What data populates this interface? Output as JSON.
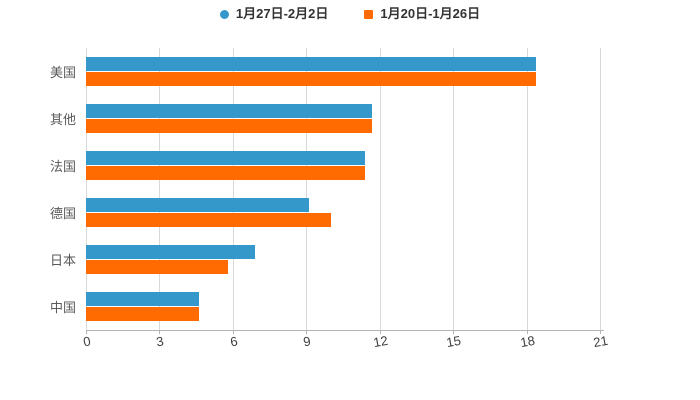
{
  "chart_data": {
    "type": "bar",
    "orientation": "horizontal",
    "title": "",
    "categories": [
      "美国",
      "其他",
      "法国",
      "德国",
      "日本",
      "中国"
    ],
    "series": [
      {
        "name": "1月27日-2月2日",
        "color": "#3498cb",
        "marker": "circle",
        "values": [
          18.4,
          11.7,
          11.4,
          9.1,
          6.9,
          4.6
        ]
      },
      {
        "name": "1月20日-1月26日",
        "color": "#ff6b00",
        "marker": "square",
        "values": [
          18.4,
          11.7,
          11.4,
          10.0,
          5.8,
          4.6
        ]
      }
    ],
    "x_ticks": [
      0,
      3,
      6,
      9,
      12,
      15,
      18,
      21
    ],
    "xlim": [
      0,
      21
    ],
    "grid": true,
    "legend_position": "top",
    "colors": {
      "gridline": "#d9d9d9",
      "axis": "#b3b3b3",
      "category_label": "#595959",
      "tick_label": "#404040",
      "legend_label": "#333333",
      "background": "#ffffff"
    }
  }
}
